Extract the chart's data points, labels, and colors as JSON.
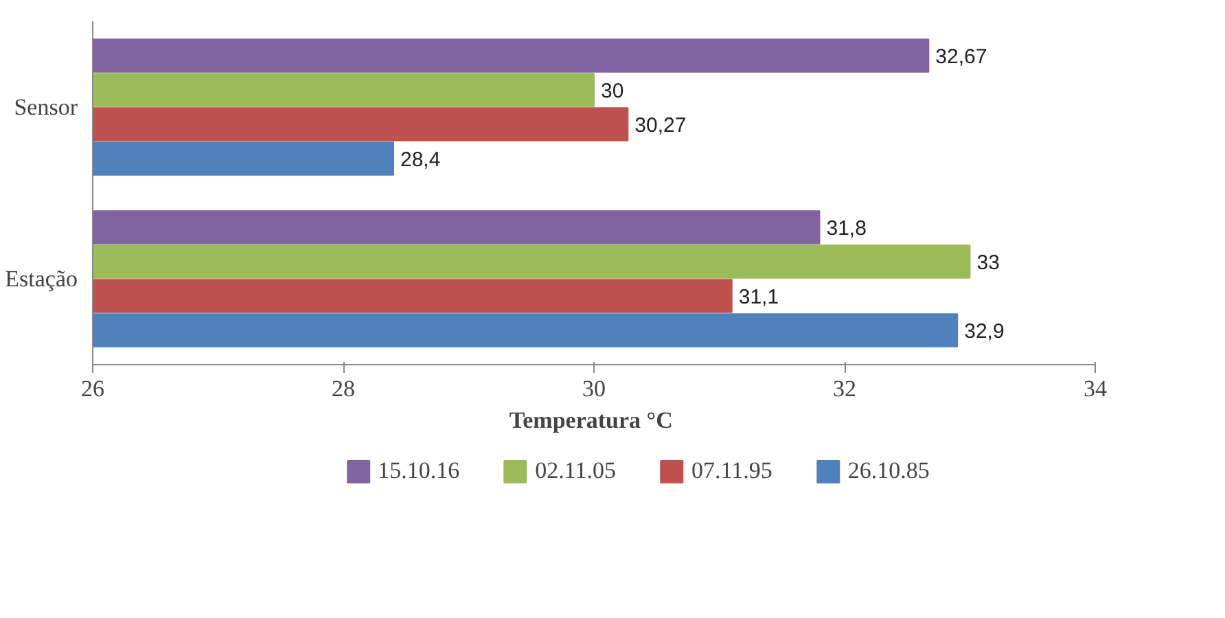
{
  "chart_data": {
    "type": "bar",
    "orientation": "horizontal",
    "xlabel": "Temperatura  °C",
    "categories": [
      "Sensor",
      "Estação"
    ],
    "series": [
      {
        "name": "15.10.16",
        "color": "#8064a2",
        "values": [
          32.67,
          31.8
        ],
        "value_labels": [
          "32,67",
          "31,8"
        ]
      },
      {
        "name": "02.11.05",
        "color": "#9bbb59",
        "values": [
          30,
          33
        ],
        "value_labels": [
          "30",
          "33"
        ]
      },
      {
        "name": "07.11.95",
        "color": "#c0504d",
        "values": [
          30.27,
          31.1
        ],
        "value_labels": [
          "30,27",
          "31,1"
        ]
      },
      {
        "name": "26.10.85",
        "color": "#4f81bd",
        "values": [
          28.4,
          32.9
        ],
        "value_labels": [
          "28,4",
          "32,9"
        ]
      }
    ],
    "xlim": [
      26,
      34
    ],
    "xticks": [
      26,
      28,
      30,
      32,
      34
    ],
    "grid": false,
    "legend": "bottom"
  }
}
